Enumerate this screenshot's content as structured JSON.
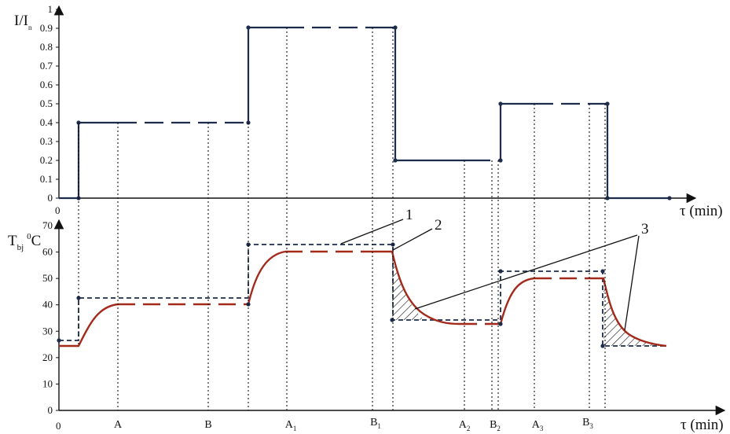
{
  "top_axis": {
    "ylabel_main": "I/I",
    "ylabel_sub": "n",
    "xlabel": "τ (min)",
    "origin": "0",
    "yticks": [
      "0",
      "0.1",
      "0.2",
      "0.3",
      "0.4",
      "0.5",
      "0.6",
      "0.7",
      "0.8",
      "0.9",
      "1"
    ]
  },
  "bottom_axis": {
    "ylabel_main": "T",
    "ylabel_sub": "bj",
    "ylabel_sup": "0",
    "ylabel_unit": "C",
    "xlabel": "τ (min)",
    "origin": "0",
    "yticks": [
      "0",
      "10",
      "20",
      "30",
      "40",
      "50",
      "60",
      "70"
    ]
  },
  "x_markers": [
    {
      "main": "A",
      "sub": ""
    },
    {
      "main": "B",
      "sub": ""
    },
    {
      "main": "A",
      "sub": "1"
    },
    {
      "main": "B",
      "sub": "1"
    },
    {
      "main": "A",
      "sub": "2"
    },
    {
      "main": "B",
      "sub": "2"
    },
    {
      "main": "A",
      "sub": "3"
    },
    {
      "main": "B",
      "sub": "3"
    }
  ],
  "callouts": [
    "1",
    "2",
    "3"
  ],
  "chart_data": [
    {
      "type": "line",
      "title": "",
      "ylabel": "I/In",
      "xlabel": "τ (min)",
      "ylim": [
        0,
        1
      ],
      "series": [
        {
          "values_step": [
            {
              "level": 0.0,
              "segment": "0 to load start"
            },
            {
              "level": 0.4,
              "segment": "A – B"
            },
            {
              "level": 0.9,
              "segment": "A1 – B1"
            },
            {
              "level": 0.2,
              "segment": "A2 – B2"
            },
            {
              "level": 0.5,
              "segment": "A3 – B3"
            },
            {
              "level": 0.0,
              "segment": "after B3"
            }
          ]
        }
      ]
    },
    {
      "type": "line",
      "title": "",
      "ylabel": "Tbj 0C",
      "xlabel": "τ (min)",
      "ylim": [
        0,
        70
      ],
      "series": [
        {
          "values_step": [
            26,
            42,
            63,
            34,
            53,
            24
          ]
        },
        {
          "values_settled": [
            24,
            40,
            60,
            32,
            50,
            24
          ]
        }
      ]
    }
  ],
  "colors": {
    "current": "#1c2c4a",
    "temperature": "#a32a1a",
    "ideal": "#1c2c4a"
  }
}
